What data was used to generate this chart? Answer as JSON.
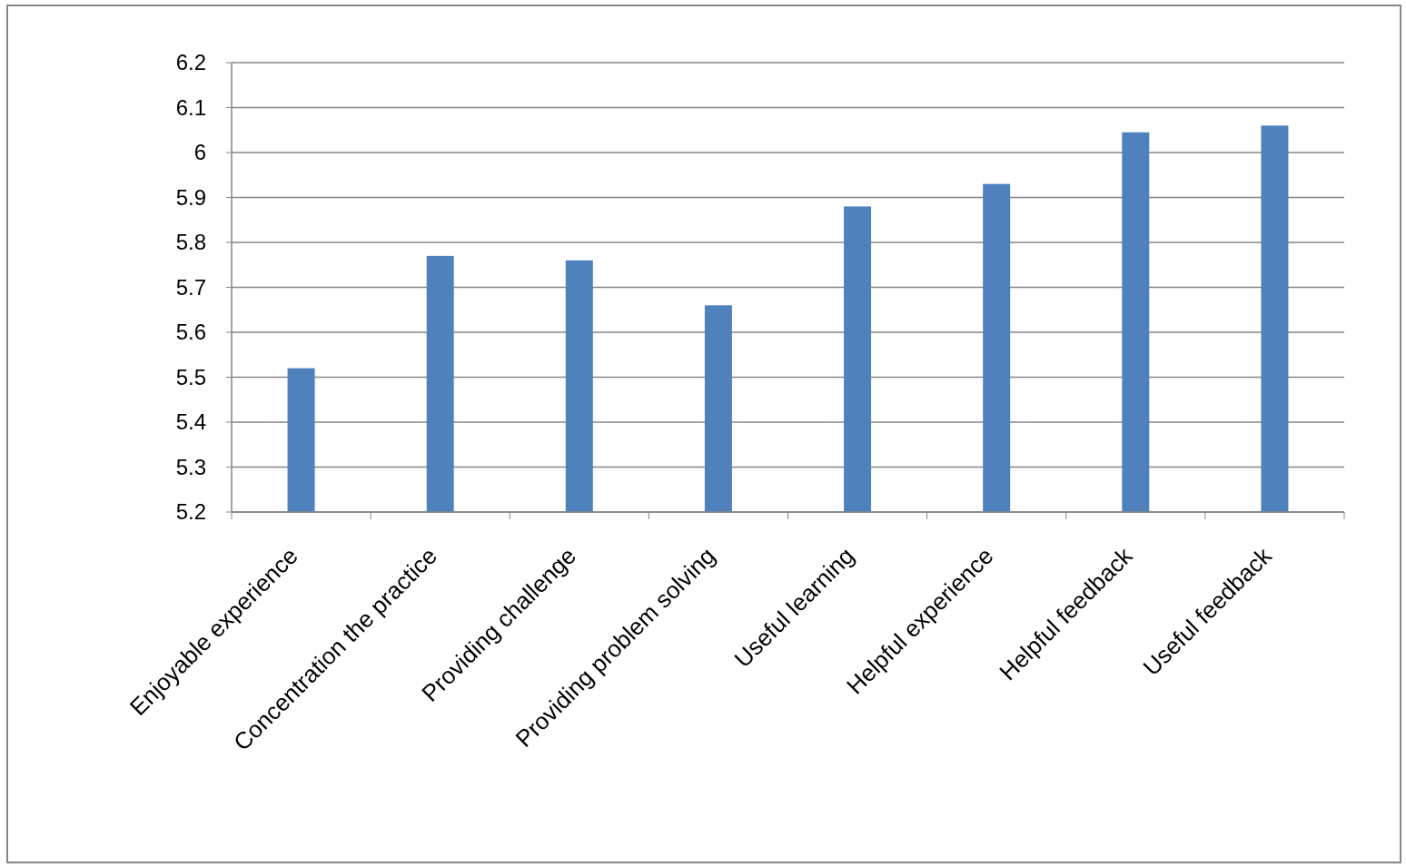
{
  "chart_data": {
    "type": "bar",
    "categories": [
      "Enjoyable experience",
      "Concentration the practice",
      "Providing challenge",
      "Providing problem solving",
      "Useful learning",
      "Helpful experience",
      "Helpful feedback",
      "Useful feedback"
    ],
    "values": [
      5.52,
      5.77,
      5.76,
      5.66,
      5.88,
      5.93,
      6.045,
      6.06
    ],
    "color": "#4f81bd",
    "ylim": [
      5.2,
      6.2
    ],
    "yticks": [
      5.2,
      5.3,
      5.4,
      5.5,
      5.6,
      5.7,
      5.8,
      5.9,
      6,
      6.1,
      6.2
    ],
    "grid": "y"
  }
}
